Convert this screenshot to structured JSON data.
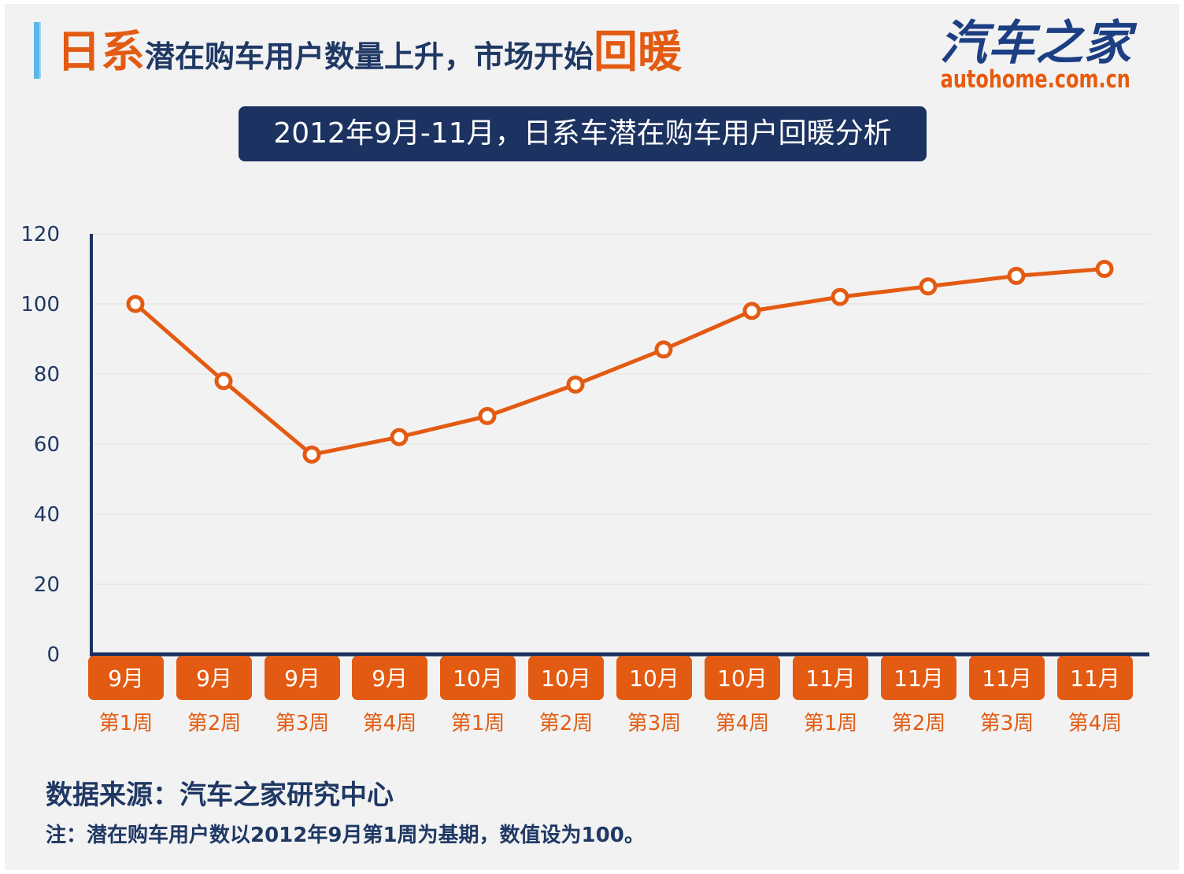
{
  "header": {
    "title_accent_1": "日系",
    "title_main": "潜在购车用户数量上升，市场开始",
    "title_accent_2": "回暖",
    "logo_cn": "汽车之家",
    "logo_en": "autohome.com.cn"
  },
  "subtitle": "2012年9月-11月，日系车潜在购车用户回暖分析",
  "chart_data": {
    "type": "line",
    "title": "2012年9月-11月，日系车潜在购车用户回暖分析",
    "categories_month": [
      "9月",
      "9月",
      "9月",
      "9月",
      "10月",
      "10月",
      "10月",
      "10月",
      "11月",
      "11月",
      "11月",
      "11月"
    ],
    "categories_week": [
      "第1周",
      "第2周",
      "第3周",
      "第4周",
      "第1周",
      "第2周",
      "第3周",
      "第4周",
      "第1周",
      "第2周",
      "第3周",
      "第4周"
    ],
    "series": [
      {
        "values": [
          100,
          78,
          57,
          62,
          68,
          77,
          87,
          98,
          102,
          105,
          108,
          110
        ]
      }
    ],
    "ylim": [
      0,
      120
    ],
    "yticks": [
      0,
      20,
      40,
      60,
      80,
      100,
      120
    ],
    "grid": true,
    "colors": {
      "line": "#e35b12",
      "month_box": "#e35b12",
      "axis": "#1c3260",
      "week_label": "#e35b12"
    }
  },
  "footer": {
    "source": "数据来源：汽车之家研究中心",
    "note": "注：潜在购车用户数以2012年9月第1周为基期，数值设为100。"
  }
}
